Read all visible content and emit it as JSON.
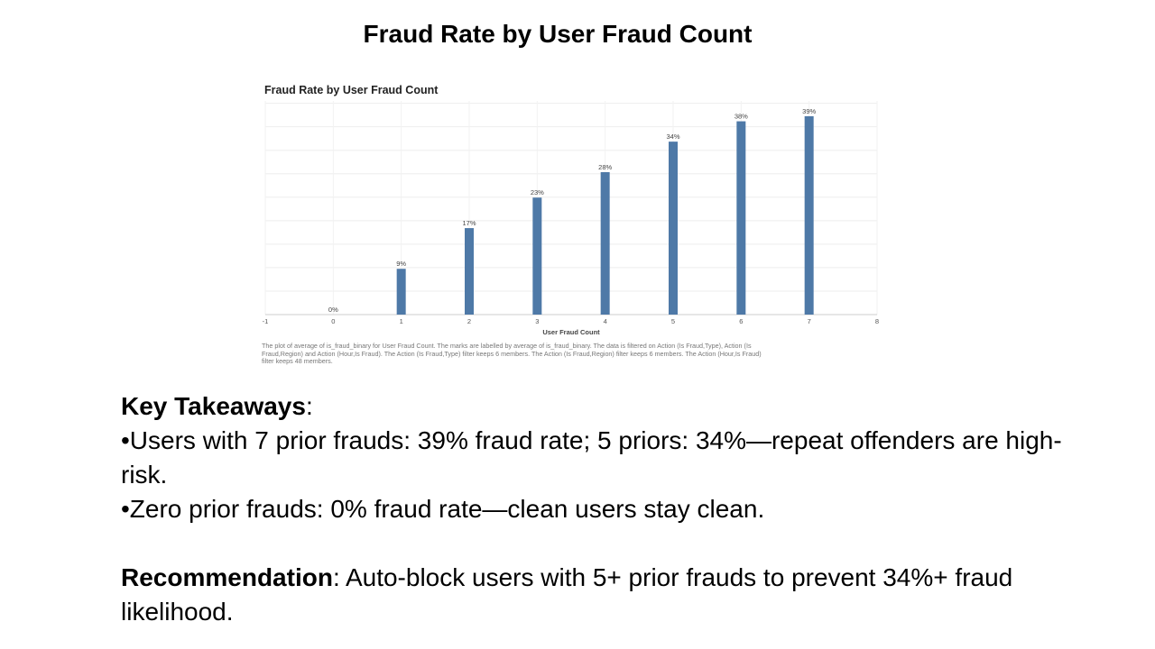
{
  "slide": {
    "title": "Fraud Rate by User Fraud Count"
  },
  "chart_data": {
    "type": "bar",
    "title": "Fraud Rate by User Fraud Count",
    "xlabel": "User Fraud Count",
    "ylabel": "",
    "x_ticks": [
      "-1",
      "0",
      "1",
      "2",
      "3",
      "4",
      "5",
      "6",
      "7",
      "8"
    ],
    "xlim": [
      -1,
      8
    ],
    "ylim": [
      0,
      0.42
    ],
    "grid": true,
    "bar_color": "#4E79A7",
    "categories": [
      0,
      1,
      2,
      3,
      4,
      5,
      6,
      7
    ],
    "values": [
      0.0,
      0.09,
      0.17,
      0.23,
      0.28,
      0.34,
      0.38,
      0.39
    ],
    "labels": [
      "0%",
      "9%",
      "17%",
      "23%",
      "28%",
      "34%",
      "38%",
      "39%"
    ],
    "caption_lines": [
      "The plot of average of is_fraud_binary for User Fraud Count.  The marks are labelled by average of is_fraud_binary. The data is filtered on Action (Is Fraud,Type), Action (Is",
      "Fraud,Region) and Action (Hour,Is Fraud). The Action (Is Fraud,Type) filter keeps 6 members. The Action (Is Fraud,Region) filter keeps 6 members. The Action (Hour,Is Fraud)",
      "filter keeps 48 members."
    ]
  },
  "takeaways": {
    "heading": "Key Takeaways",
    "heading_suffix": ":",
    "bullet1": "•Users with 7 prior frauds: 39% fraud rate; 5 priors: 34%—repeat offenders are high-risk.",
    "bullet2": "•Zero prior frauds: 0% fraud rate—clean users stay clean.",
    "rec_label": "Recommendation",
    "rec_text": ": Auto-block users with 5+ prior frauds to prevent 34%+ fraud likelihood."
  }
}
